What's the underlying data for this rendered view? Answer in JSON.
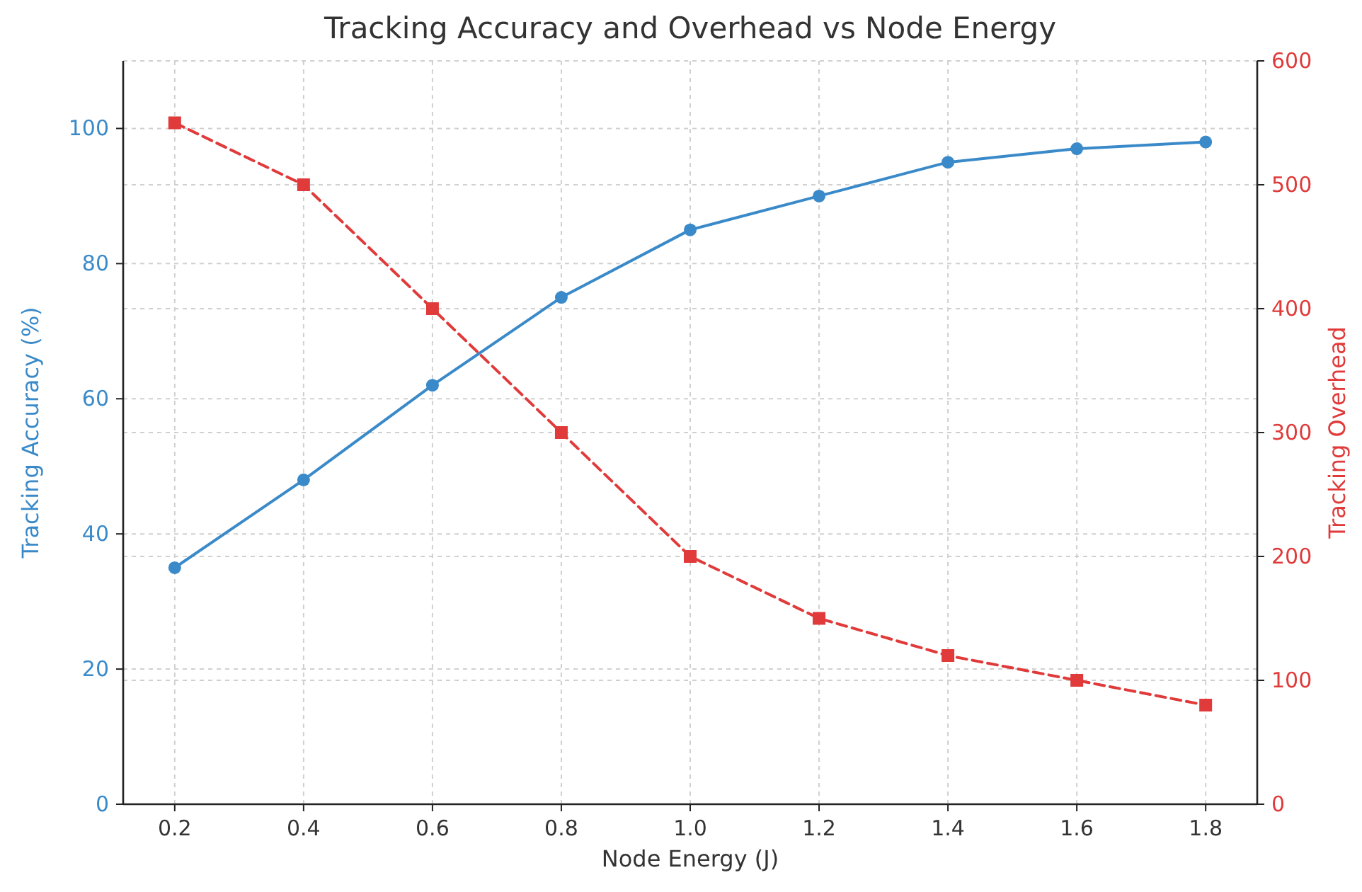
{
  "chart_data": {
    "type": "line",
    "title": "Tracking Accuracy and Overhead vs Node Energy",
    "xlabel": "Node Energy (J)",
    "ylabel": "Tracking Accuracy (%)",
    "y2label": "Tracking Overhead",
    "x": [
      0.2,
      0.4,
      0.6,
      0.8,
      1.0,
      1.2,
      1.4,
      1.6,
      1.8
    ],
    "xlim": [
      0.12,
      1.88
    ],
    "xticks": [
      {
        "value": 0.2,
        "label": "0.2"
      },
      {
        "value": 0.4,
        "label": "0.4"
      },
      {
        "value": 0.6,
        "label": "0.6"
      },
      {
        "value": 0.8,
        "label": "0.8"
      },
      {
        "value": 1.0,
        "label": "1.0"
      },
      {
        "value": 1.2,
        "label": "1.2"
      },
      {
        "value": 1.4,
        "label": "1.4"
      },
      {
        "value": 1.6,
        "label": "1.6"
      },
      {
        "value": 1.8,
        "label": "1.8"
      }
    ],
    "ylim": [
      0,
      110
    ],
    "yticks": [
      0,
      20,
      40,
      60,
      80,
      100
    ],
    "y2lim": [
      0,
      600
    ],
    "y2ticks": [
      0,
      100,
      200,
      300,
      400,
      500,
      600
    ],
    "grid": true,
    "series": [
      {
        "color": "#3a8ac9",
        "marker": "circle",
        "line_style": "solid",
        "values": [
          35,
          48,
          62,
          75,
          85,
          90,
          95,
          97,
          98
        ]
      },
      {
        "color": "#e03a3a",
        "marker": "square",
        "line_style": "dashed",
        "axis": "y2",
        "values": [
          550,
          500,
          400,
          300,
          200,
          150,
          120,
          100,
          80
        ]
      }
    ]
  }
}
